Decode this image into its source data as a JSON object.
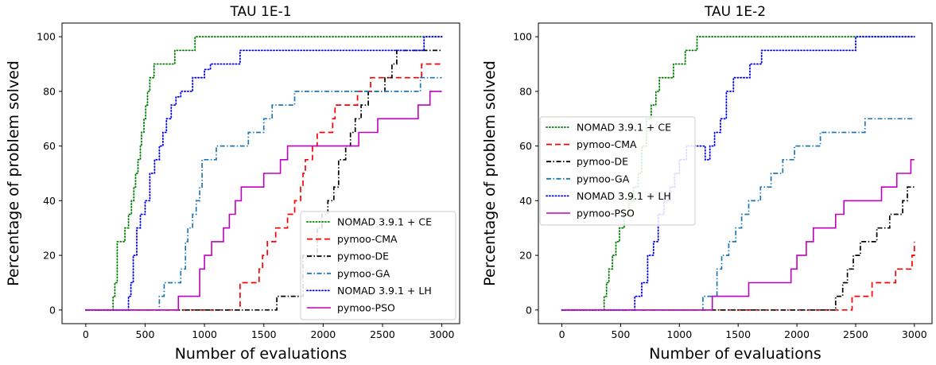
{
  "chart_data": [
    {
      "type": "line",
      "step": true,
      "title": "TAU 1E-1",
      "xlabel": "Number of evaluations",
      "ylabel": "Percentage of problem solved",
      "xlim": [
        -200,
        3150
      ],
      "ylim": [
        -5,
        105
      ],
      "xticks": [
        "0",
        "500",
        "1000",
        "1500",
        "2000",
        "2500",
        "3000"
      ],
      "yticks": [
        "0",
        "20",
        "40",
        "60",
        "80",
        "100"
      ],
      "legend": {
        "position": "lower-right"
      },
      "series": [
        {
          "name": "NOMAD 3.9.1 + CE",
          "color": "#008000",
          "dash": "dotted",
          "x": [
            0,
            230,
            245,
            265,
            290,
            330,
            360,
            385,
            405,
            420,
            440,
            460,
            470,
            490,
            505,
            520,
            540,
            560,
            575,
            600,
            660,
            750,
            800,
            920,
            960,
            3000
          ],
          "y": [
            0,
            5,
            10,
            25,
            25,
            30,
            35,
            40,
            45,
            50,
            55,
            60,
            65,
            70,
            75,
            80,
            85,
            85,
            90,
            90,
            90,
            95,
            95,
            100,
            100,
            100
          ]
        },
        {
          "name": "pymoo-CMA",
          "color": "#ff0000",
          "dash": "dashed",
          "x": [
            0,
            1260,
            1300,
            1400,
            1460,
            1490,
            1530,
            1600,
            1700,
            1760,
            1810,
            1830,
            1850,
            1910,
            1950,
            2080,
            2100,
            2170,
            2290,
            2370,
            2400,
            2420,
            2510,
            2610,
            2630,
            2830,
            2870,
            3000
          ],
          "y": [
            0,
            0,
            10,
            10,
            15,
            20,
            25,
            30,
            35,
            40,
            45,
            50,
            55,
            60,
            65,
            70,
            75,
            75,
            80,
            80,
            85,
            85,
            85,
            85,
            85,
            90,
            90,
            90
          ]
        },
        {
          "name": "pymoo-DE",
          "color": "#000000",
          "dash": "dashdot",
          "x": [
            0,
            1570,
            1610,
            1700,
            1830,
            1900,
            1950,
            1990,
            2040,
            2090,
            2130,
            2190,
            2230,
            2270,
            2320,
            2380,
            2440,
            2520,
            2580,
            2620,
            3000
          ],
          "y": [
            0,
            0,
            5,
            5,
            20,
            20,
            30,
            35,
            40,
            45,
            55,
            60,
            65,
            70,
            75,
            80,
            80,
            85,
            90,
            95,
            95
          ]
        },
        {
          "name": "pymoo-GA",
          "color": "#1f77b4",
          "dash": "dashdot",
          "x": [
            0,
            600,
            620,
            660,
            760,
            800,
            840,
            860,
            900,
            930,
            960,
            980,
            1100,
            1300,
            1370,
            1460,
            1500,
            1570,
            1640,
            1700,
            1760,
            1790,
            1820,
            2820,
            3000
          ],
          "y": [
            0,
            0,
            5,
            10,
            10,
            15,
            25,
            30,
            35,
            40,
            45,
            55,
            60,
            60,
            65,
            65,
            70,
            75,
            75,
            75,
            80,
            80,
            80,
            85,
            85
          ]
        },
        {
          "name": "NOMAD 3.9.1 + LH",
          "color": "#0000ff",
          "dash": "dotted",
          "x": [
            0,
            320,
            360,
            380,
            400,
            430,
            460,
            500,
            540,
            580,
            620,
            650,
            680,
            720,
            760,
            800,
            850,
            900,
            1000,
            1050,
            1150,
            1300,
            1600,
            1880,
            2850,
            3000
          ],
          "y": [
            0,
            0,
            5,
            10,
            20,
            30,
            35,
            40,
            50,
            55,
            60,
            65,
            70,
            75,
            78,
            80,
            80,
            85,
            88,
            90,
            90,
            95,
            95,
            95,
            100,
            100
          ]
        },
        {
          "name": "pymoo-PSO",
          "color": "#c000c0",
          "dash": "solid",
          "x": [
            0,
            775,
            780,
            960,
            1000,
            1060,
            1160,
            1210,
            1260,
            1310,
            1400,
            1500,
            1640,
            1700,
            1800,
            1950,
            2300,
            2460,
            2600,
            2800,
            2900,
            3000
          ],
          "y": [
            0,
            0,
            5,
            15,
            20,
            25,
            30,
            35,
            40,
            45,
            45,
            50,
            55,
            60,
            60,
            60,
            65,
            70,
            70,
            75,
            80,
            80
          ]
        }
      ]
    },
    {
      "type": "line",
      "step": true,
      "title": "TAU 1E-2",
      "xlabel": "Number of evaluations",
      "ylabel": "Percentage of problem solved",
      "xlim": [
        -200,
        3150
      ],
      "ylim": [
        -5,
        105
      ],
      "xticks": [
        "0",
        "500",
        "1000",
        "1500",
        "2000",
        "2500",
        "3000"
      ],
      "yticks": [
        "0",
        "20",
        "40",
        "60",
        "80",
        "100"
      ],
      "legend": {
        "position": "center-left"
      },
      "series": [
        {
          "name": "NOMAD 3.9.1 + CE",
          "color": "#008000",
          "dash": "dotted",
          "x": [
            0,
            360,
            380,
            400,
            430,
            460,
            490,
            530,
            570,
            610,
            650,
            680,
            720,
            760,
            800,
            830,
            880,
            950,
            1000,
            1050,
            1100,
            1150,
            3000
          ],
          "y": [
            0,
            5,
            10,
            15,
            20,
            25,
            30,
            35,
            40,
            45,
            50,
            60,
            70,
            75,
            80,
            85,
            85,
            90,
            90,
            95,
            95,
            100,
            100
          ]
        },
        {
          "name": "pymoo-CMA",
          "color": "#ff0000",
          "dash": "dashed",
          "x": [
            0,
            2430,
            2470,
            2560,
            2640,
            2690,
            2780,
            2840,
            2940,
            2980,
            3000
          ],
          "y": [
            0,
            0,
            5,
            5,
            10,
            10,
            10,
            15,
            15,
            20,
            25
          ]
        },
        {
          "name": "pymoo-DE",
          "color": "#000000",
          "dash": "dashdot",
          "x": [
            0,
            2290,
            2330,
            2390,
            2430,
            2480,
            2540,
            2600,
            2680,
            2730,
            2790,
            2860,
            2900,
            2940,
            2980,
            3000
          ],
          "y": [
            0,
            0,
            5,
            10,
            15,
            20,
            25,
            25,
            30,
            30,
            35,
            35,
            40,
            45,
            45,
            45
          ]
        },
        {
          "name": "pymoo-GA",
          "color": "#1f77b4",
          "dash": "dashdot",
          "x": [
            0,
            1170,
            1200,
            1230,
            1320,
            1360,
            1420,
            1480,
            1530,
            1590,
            1650,
            1690,
            1780,
            1830,
            1880,
            1930,
            1980,
            2030,
            2160,
            2200,
            2420,
            2450,
            2580,
            2680,
            3000
          ],
          "y": [
            0,
            0,
            5,
            5,
            15,
            20,
            25,
            30,
            35,
            40,
            40,
            45,
            50,
            50,
            55,
            55,
            60,
            60,
            60,
            65,
            65,
            65,
            70,
            70,
            70
          ]
        },
        {
          "name": "NOMAD 3.9.1 + LH",
          "color": "#0000ff",
          "dash": "dotted",
          "x": [
            0,
            590,
            620,
            680,
            730,
            780,
            820,
            870,
            920,
            960,
            1000,
            1060,
            1180,
            1220,
            1260,
            1300,
            1350,
            1400,
            1460,
            1520,
            1600,
            1700,
            2450,
            2500,
            3000
          ],
          "y": [
            0,
            0,
            5,
            10,
            20,
            25,
            35,
            40,
            45,
            50,
            55,
            60,
            60,
            55,
            60,
            65,
            70,
            80,
            85,
            85,
            90,
            95,
            95,
            100,
            100
          ]
        },
        {
          "name": "pymoo-PSO",
          "color": "#c000c0",
          "dash": "solid",
          "x": [
            0,
            1270,
            1280,
            1580,
            1590,
            1900,
            1950,
            2000,
            2080,
            2140,
            2200,
            2330,
            2400,
            2580,
            2650,
            2720,
            2800,
            2850,
            2920,
            2970,
            3000
          ],
          "y": [
            0,
            0,
            5,
            5,
            10,
            10,
            15,
            20,
            25,
            30,
            30,
            35,
            40,
            40,
            40,
            45,
            45,
            50,
            50,
            55,
            55
          ]
        }
      ]
    }
  ]
}
